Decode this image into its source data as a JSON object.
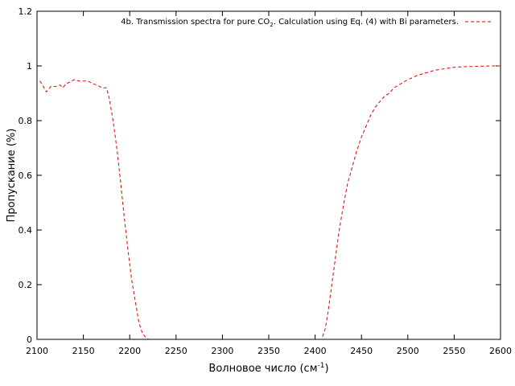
{
  "chart_data": {
    "type": "line",
    "xlabel": "Волновое число (см",
    "xlabel_sup": "-1",
    "xlabel_tail": ")",
    "ylabel": "Пропускание (%)",
    "xlim": [
      2100,
      2600
    ],
    "ylim": [
      0,
      1.2
    ],
    "xticks": [
      2100,
      2150,
      2200,
      2250,
      2300,
      2350,
      2400,
      2450,
      2500,
      2550,
      2600
    ],
    "yticks": [
      0,
      0.2,
      0.4,
      0.6,
      0.8,
      1,
      1.2
    ],
    "grid": false,
    "legend_position": "top-right",
    "series": [
      {
        "legend_pre": "4b. Transmission spectra for pure CO",
        "legend_sub": "2",
        "legend_post": ". Calculation using Eq. (4) with Bi parameters.",
        "color": "#e00000",
        "style": "dashed",
        "x": [
          2103,
          2106,
          2110,
          2115,
          2120,
          2125,
          2128,
          2131,
          2135,
          2140,
          2145,
          2150,
          2155,
          2160,
          2165,
          2170,
          2175,
          2178,
          2182,
          2186,
          2190,
          2194,
          2198,
          2202,
          2206,
          2210,
          2214,
          2218,
          2221
        ],
        "y": [
          0.945,
          0.93,
          0.905,
          0.925,
          0.925,
          0.93,
          0.92,
          0.935,
          0.94,
          0.95,
          0.945,
          0.945,
          0.945,
          0.935,
          0.93,
          0.92,
          0.92,
          0.88,
          0.8,
          0.7,
          0.58,
          0.45,
          0.33,
          0.22,
          0.14,
          0.06,
          0.02,
          0.005,
          0
        ],
        "x2": [
          2408,
          2411,
          2414,
          2418,
          2422,
          2426,
          2430,
          2435,
          2440,
          2445,
          2450,
          2455,
          2460,
          2465,
          2470,
          2475,
          2480,
          2485,
          2490,
          2495,
          2500,
          2510,
          2520,
          2530,
          2540,
          2550,
          2560,
          2570,
          2580,
          2590,
          2600
        ],
        "y2": [
          0.01,
          0.04,
          0.1,
          0.2,
          0.3,
          0.4,
          0.48,
          0.57,
          0.63,
          0.69,
          0.74,
          0.78,
          0.82,
          0.85,
          0.87,
          0.89,
          0.9,
          0.92,
          0.93,
          0.94,
          0.95,
          0.965,
          0.975,
          0.985,
          0.99,
          0.995,
          0.997,
          0.998,
          0.999,
          1.0,
          1.0
        ]
      }
    ]
  }
}
